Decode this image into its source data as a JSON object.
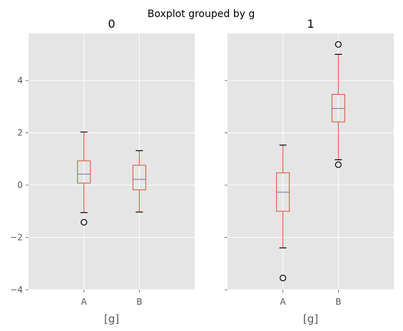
{
  "chart_data": {
    "type": "boxplot",
    "title": "Boxplot grouped by g",
    "ylim": [
      -4,
      5.8
    ],
    "yticks": [
      -4,
      -2,
      0,
      2,
      4
    ],
    "grid": true,
    "colors": {
      "box": "#E24A33",
      "median": "#7A68A6",
      "background": "#E5E5E5",
      "grid": "#FFFFFF"
    },
    "panels": [
      {
        "title": "0",
        "xlabel": "[g]",
        "categories": [
          "A",
          "B"
        ],
        "boxes": [
          {
            "label": "A",
            "whislo": -1.05,
            "q1": 0.08,
            "med": 0.42,
            "q3": 0.93,
            "whishi": 2.03,
            "fliers": [
              -1.42
            ]
          },
          {
            "label": "B",
            "whislo": -1.03,
            "q1": -0.18,
            "med": 0.22,
            "q3": 0.76,
            "whishi": 1.32,
            "fliers": []
          }
        ]
      },
      {
        "title": "1",
        "xlabel": "[g]",
        "categories": [
          "A",
          "B"
        ],
        "boxes": [
          {
            "label": "A",
            "whislo": -2.4,
            "q1": -1.0,
            "med": -0.27,
            "q3": 0.47,
            "whishi": 1.53,
            "fliers": [
              -3.55
            ]
          },
          {
            "label": "B",
            "whislo": 0.97,
            "q1": 2.42,
            "med": 2.93,
            "q3": 3.47,
            "whishi": 5.0,
            "fliers": [
              5.38,
              0.78
            ]
          }
        ]
      }
    ]
  }
}
